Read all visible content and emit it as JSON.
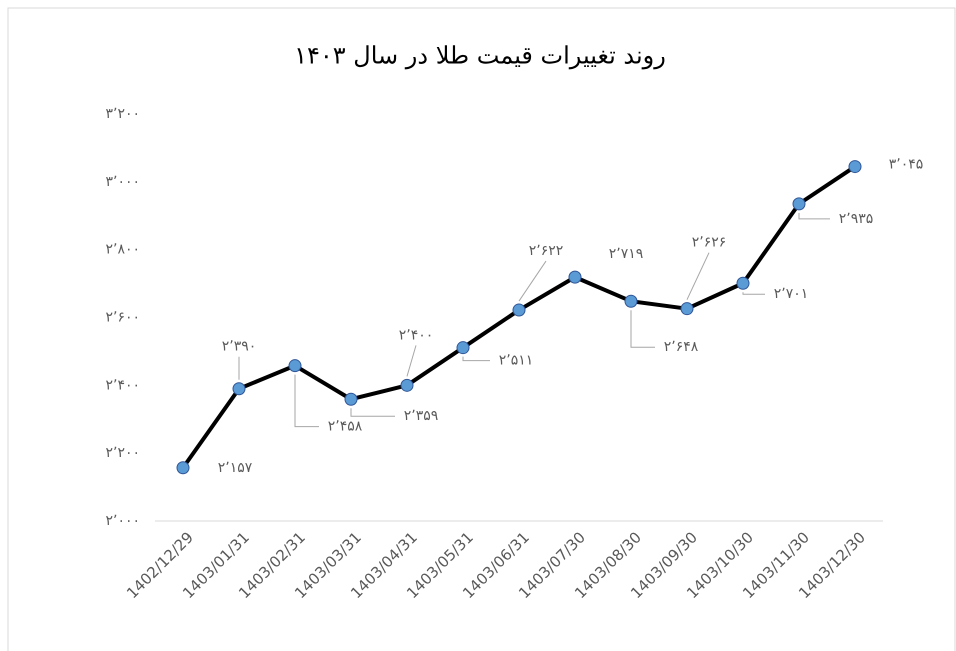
{
  "chart_data": {
    "type": "line",
    "title": "روند تغییرات قیمت طلا در سال ۱۴۰۳",
    "categories": [
      "1402/12/29",
      "1403/01/31",
      "1403/02/31",
      "1403/03/31",
      "1403/04/31",
      "1403/05/31",
      "1403/06/31",
      "1403/07/30",
      "1403/08/30",
      "1403/09/30",
      "1403/10/30",
      "1403/11/30",
      "1403/12/30"
    ],
    "values": [
      2157,
      2390,
      2458,
      2359,
      2400,
      2511,
      2622,
      2719,
      2648,
      2626,
      2701,
      2935,
      3045
    ],
    "value_labels": [
      "۲٬۱۵۷",
      "۲٬۳۹۰",
      "۲٬۴۵۸",
      "۲٬۳۵۹",
      "۲٬۴۰۰",
      "۲٬۵۱۱",
      "۲٬۶۲۲",
      "۲٬۷۱۹",
      "۲٬۶۴۸",
      "۲٬۶۲۶",
      "۲٬۷۰۱",
      "۲٬۹۳۵",
      "۳٬۰۴۵"
    ],
    "color": "#000000",
    "marker_color": "#5b9bd5",
    "ylim": [
      2000,
      3200
    ],
    "yticks": [
      {
        "value": 2000,
        "label": "۲٬۰۰۰"
      },
      {
        "value": 2200,
        "label": "۲٬۲۰۰"
      },
      {
        "value": 2400,
        "label": "۲٬۴۰۰"
      },
      {
        "value": 2600,
        "label": "۲٬۶۰۰"
      },
      {
        "value": 2800,
        "label": "۲٬۸۰۰"
      },
      {
        "value": 3000,
        "label": "۳٬۰۰۰"
      },
      {
        "value": 3200,
        "label": "۳٬۲۰۰"
      }
    ],
    "grid": false
  }
}
